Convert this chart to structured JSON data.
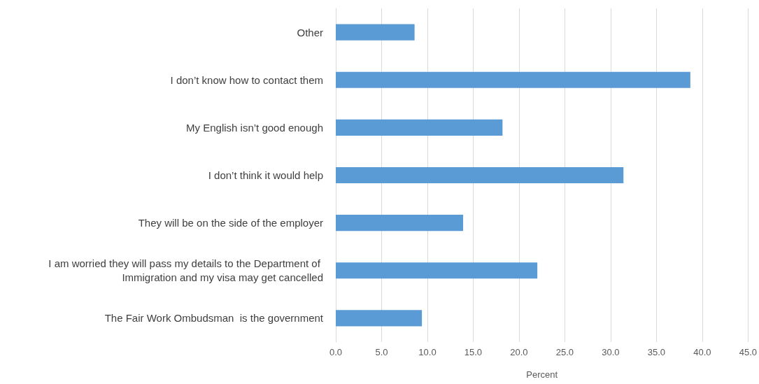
{
  "chart_data": {
    "type": "bar",
    "orientation": "horizontal",
    "xlabel": "Percent",
    "categories": [
      "Other",
      "I don’t know how to contact them",
      "My English isn’t good enough",
      "I don’t think it would help",
      "They will be on the side of the employer",
      "I am worried they will pass my details to the Department of Immigration and my visa may get cancelled",
      "The Fair Work Ombudsman  is the government"
    ],
    "values": [
      8.6,
      38.7,
      18.2,
      31.4,
      13.9,
      22.0,
      9.4
    ],
    "color": "#5b9bd5",
    "xlim": [
      0,
      45
    ],
    "xticks": [
      {
        "value": 0,
        "label": "0.0"
      },
      {
        "value": 5,
        "label": "5.0"
      },
      {
        "value": 10,
        "label": "10.0"
      },
      {
        "value": 15,
        "label": "15.0"
      },
      {
        "value": 20,
        "label": "20.0"
      },
      {
        "value": 25,
        "label": "25.0"
      },
      {
        "value": 30,
        "label": "30.0"
      },
      {
        "value": 35,
        "label": "35.0"
      },
      {
        "value": 40,
        "label": "40.0"
      },
      {
        "value": 45,
        "label": "45.0"
      }
    ],
    "grid": "x"
  }
}
